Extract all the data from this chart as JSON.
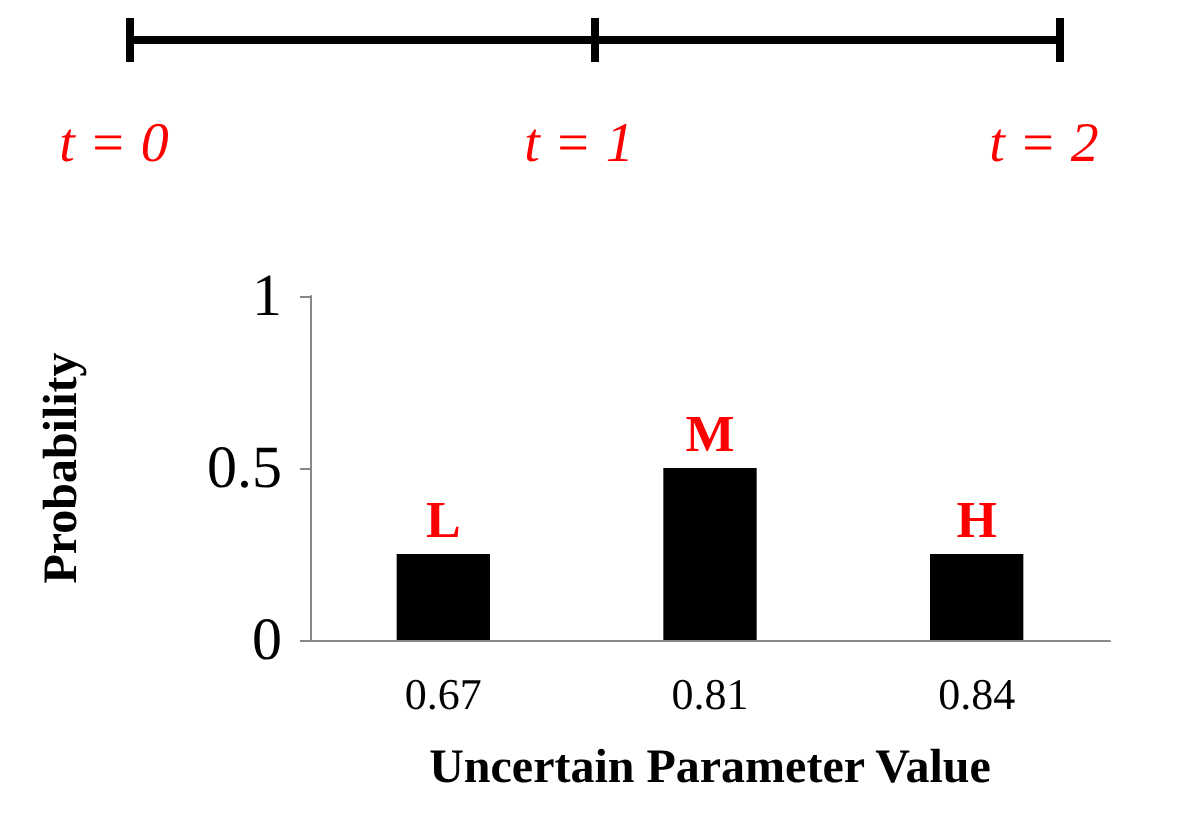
{
  "chart_data": {
    "type": "bar",
    "xlabel": "Uncertain Parameter Value",
    "ylabel": "Probability",
    "categories": [
      "0.67",
      "0.81",
      "0.84"
    ],
    "values": [
      0.25,
      0.5,
      0.25
    ],
    "color": "#000000",
    "ylim": [
      0,
      1
    ],
    "yticks": [
      0,
      0.5,
      1
    ],
    "grid": false,
    "annotations": [
      "t = 0",
      "t = 1",
      "t = 2",
      {
        "text": "L",
        "x": "0.67",
        "y": 0.25
      },
      {
        "text": "M",
        "x": "0.81",
        "y": 0.5
      },
      {
        "text": "H",
        "x": "0.84",
        "y": 0.25
      }
    ]
  }
}
